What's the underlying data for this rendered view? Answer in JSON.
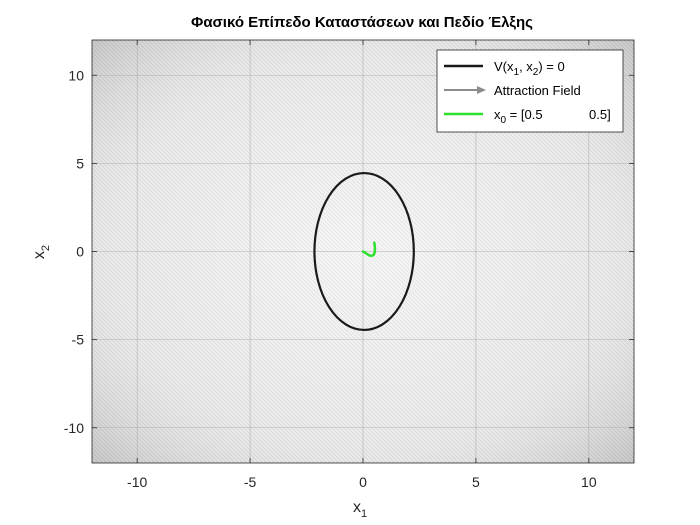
{
  "chart_data": {
    "type": "line",
    "title": "Φασικό Επίπεδο Καταστάσεων και Πεδίο Έλξης",
    "xlabel": {
      "base": "x",
      "sub": "1"
    },
    "ylabel": {
      "base": "x",
      "sub": "2"
    },
    "xlim": [
      -12,
      12
    ],
    "ylim": [
      -12,
      12
    ],
    "xticks": [
      -10,
      -5,
      0,
      5,
      10
    ],
    "yticks": [
      -10,
      -5,
      0,
      5,
      10
    ],
    "xtick_labels": [
      "-10",
      "-5",
      "0",
      "5",
      "10"
    ],
    "ytick_labels": [
      "-10",
      "-5",
      "0",
      "5",
      "10"
    ],
    "grid": true,
    "legend_position": "top-right",
    "series": [
      {
        "name": "V(x1, x2) = 0",
        "legend_label": {
          "parts": [
            "V(x",
            "1",
            ", x",
            "2",
            ") = 0"
          ]
        },
        "kind": "contour-ellipse",
        "color": "#1a1a1a",
        "center": [
          0.05,
          0
        ],
        "x_semi_axis": 2.2,
        "y_semi_axis": 4.45
      },
      {
        "name": "Attraction Field",
        "legend_label": {
          "parts": [
            "Attraction Field"
          ]
        },
        "kind": "vector-field",
        "color": "#8c8c8c"
      },
      {
        "name": "x0 = [0.5 0.5]",
        "legend_label": {
          "parts": [
            "x",
            "0",
            " = [0.5",
            "0.5]"
          ]
        },
        "kind": "trajectory",
        "color": "#2ee02e",
        "x": [
          0.5,
          0.53,
          0.52,
          0.47,
          0.38,
          0.28,
          0.18,
          0.08,
          0.0
        ],
        "y": [
          0.5,
          0.2,
          -0.05,
          -0.2,
          -0.25,
          -0.22,
          -0.15,
          -0.05,
          0.0
        ]
      }
    ]
  }
}
